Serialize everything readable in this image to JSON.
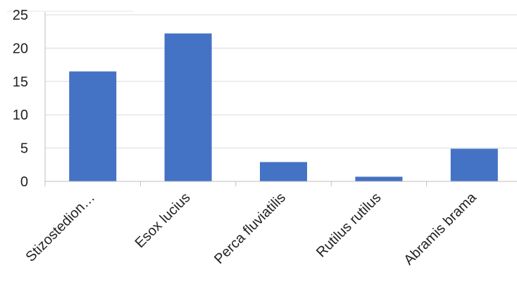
{
  "chart_data": {
    "type": "bar",
    "categories": [
      "Stizostedion…",
      "Esox lucius",
      "Perca fluviatilis",
      "Rutilus rutilus",
      "Abramis brama"
    ],
    "values": [
      16.5,
      22.2,
      2.9,
      0.7,
      4.9
    ],
    "ylim": [
      0,
      25
    ],
    "yticks": [
      0,
      5,
      10,
      15,
      20,
      25
    ],
    "grid": true,
    "bar_color": "#4472C4",
    "grid_color": "#D9D9D9",
    "axis_color": "#BFBFBF"
  }
}
